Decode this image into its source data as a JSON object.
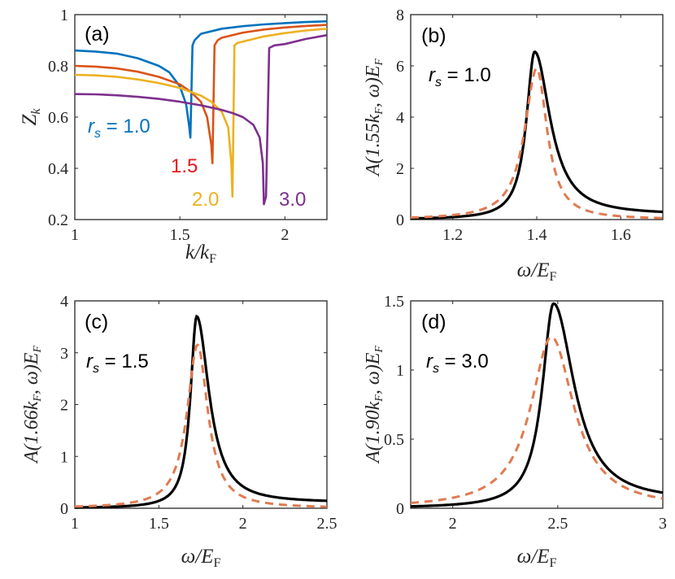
{
  "chart_data": [
    {
      "panel": "(a)",
      "type": "line",
      "xlabel": "k/k_F",
      "ylabel": "Z_k",
      "xlim": [
        1,
        2.2
      ],
      "ylim": [
        0.2,
        1.0
      ],
      "xticks": [
        "1",
        "1.5",
        "2"
      ],
      "yticks": [
        "0.2",
        "0.4",
        "0.6",
        "0.8",
        "1"
      ],
      "xtick_values": [
        1,
        1.5,
        2
      ],
      "ytick_values": [
        0.2,
        0.4,
        0.6,
        0.8,
        1.0
      ],
      "series": [
        {
          "name": "r_s = 1.0",
          "label": "1.0",
          "color": "#0072BD",
          "x": [
            1.0,
            1.1,
            1.2,
            1.3,
            1.4,
            1.45,
            1.5,
            1.53,
            1.545,
            1.55,
            1.56,
            1.57,
            1.6,
            1.7,
            1.8,
            1.9,
            2.0,
            2.1,
            2.2
          ],
          "y": [
            0.86,
            0.856,
            0.848,
            0.83,
            0.8,
            0.775,
            0.72,
            0.65,
            0.56,
            0.52,
            0.88,
            0.9,
            0.925,
            0.945,
            0.955,
            0.962,
            0.967,
            0.971,
            0.974
          ]
        },
        {
          "name": "r_s = 1.5",
          "label": "1.5",
          "color": "#D95319",
          "x": [
            1.0,
            1.1,
            1.2,
            1.3,
            1.4,
            1.5,
            1.55,
            1.6,
            1.63,
            1.65,
            1.655,
            1.665,
            1.68,
            1.7,
            1.8,
            1.9,
            2.0,
            2.1,
            2.2
          ],
          "y": [
            0.8,
            0.797,
            0.79,
            0.777,
            0.757,
            0.728,
            0.7,
            0.66,
            0.6,
            0.49,
            0.42,
            0.88,
            0.9,
            0.91,
            0.93,
            0.942,
            0.95,
            0.956,
            0.96
          ]
        },
        {
          "name": "r_s = 2.0",
          "label": "2.0",
          "color": "#EDB120",
          "x": [
            1.0,
            1.1,
            1.2,
            1.3,
            1.4,
            1.5,
            1.6,
            1.65,
            1.7,
            1.73,
            1.745,
            1.75,
            1.76,
            1.775,
            1.8,
            1.9,
            2.0,
            2.1,
            2.2
          ],
          "y": [
            0.765,
            0.763,
            0.757,
            0.747,
            0.733,
            0.714,
            0.684,
            0.66,
            0.62,
            0.56,
            0.42,
            0.29,
            0.88,
            0.89,
            0.895,
            0.915,
            0.928,
            0.938,
            0.945
          ]
        },
        {
          "name": "r_s = 3.0",
          "label": "3.0",
          "color": "#7E2F8E",
          "x": [
            1.0,
            1.1,
            1.2,
            1.3,
            1.4,
            1.5,
            1.6,
            1.7,
            1.75,
            1.8,
            1.85,
            1.88,
            1.895,
            1.9,
            1.91,
            1.925,
            1.95,
            2.0,
            2.1,
            2.2
          ],
          "y": [
            0.69,
            0.689,
            0.685,
            0.679,
            0.671,
            0.66,
            0.646,
            0.628,
            0.616,
            0.6,
            0.57,
            0.52,
            0.42,
            0.26,
            0.29,
            0.87,
            0.88,
            0.885,
            0.905,
            0.92
          ]
        }
      ]
    },
    {
      "panel": "(b)",
      "type": "line",
      "annotation": "r_s = 1.0",
      "xlabel": "ω/E_F",
      "ylabel": "A(1.55k_F, ω) E_F",
      "xlim": [
        1.1,
        1.7
      ],
      "ylim": [
        0,
        8
      ],
      "xticks": [
        "1.2",
        "1.4",
        "1.6"
      ],
      "yticks": [
        "0",
        "2",
        "4",
        "6",
        "8"
      ],
      "xtick_values": [
        1.2,
        1.4,
        1.6
      ],
      "ytick_values": [
        0,
        2,
        4,
        6,
        8
      ],
      "peaks": {
        "solid": {
          "center": 1.395,
          "height": 6.55,
          "hw_left": 0.024,
          "hw_right": 0.045,
          "tail": 0.18
        },
        "dashed": {
          "center": 1.4,
          "height": 5.9,
          "hw_left": 0.035,
          "hw_right": 0.03,
          "tail": 0.0
        }
      }
    },
    {
      "panel": "(c)",
      "type": "line",
      "annotation": "r_s = 1.5",
      "xlabel": "ω/E_F",
      "ylabel": "A(1.66k_F, ω) E_F",
      "xlim": [
        1.0,
        2.5
      ],
      "ylim": [
        0,
        4
      ],
      "xticks": [
        "1",
        "1.5",
        "2",
        "2.5"
      ],
      "yticks": [
        "0",
        "1",
        "2",
        "3",
        "4"
      ],
      "xtick_values": [
        1,
        1.5,
        2,
        2.5
      ],
      "ytick_values": [
        0,
        1,
        2,
        3,
        4
      ],
      "peaks": {
        "solid": {
          "center": 1.725,
          "height": 3.7,
          "hw_left": 0.045,
          "hw_right": 0.09,
          "tail": 0.1
        },
        "dashed": {
          "center": 1.73,
          "height": 3.15,
          "hw_left": 0.075,
          "hw_right": 0.075,
          "tail": 0.0
        }
      }
    },
    {
      "panel": "(d)",
      "type": "line",
      "annotation": "r_s = 3.0",
      "xlabel": "ω/E_F",
      "ylabel": "A(1.90k_F, ω) E_F",
      "xlim": [
        1.8,
        3.0
      ],
      "ylim": [
        0,
        1.5
      ],
      "xticks": [
        "2",
        "2.5",
        "3"
      ],
      "yticks": [
        "0",
        "0.5",
        "1",
        "1.5"
      ],
      "xtick_values": [
        2,
        2.5,
        3
      ],
      "ytick_values": [
        0,
        0.5,
        1,
        1.5
      ],
      "peaks": {
        "solid": {
          "center": 2.48,
          "height": 1.48,
          "hw_left": 0.065,
          "hw_right": 0.12,
          "tail": 0.05
        },
        "dashed": {
          "center": 2.47,
          "height": 1.24,
          "hw_left": 0.12,
          "hw_right": 0.13,
          "tail": 0.0
        }
      }
    }
  ],
  "colors": {
    "solid": "#000000",
    "dashed": "#E07B52"
  }
}
